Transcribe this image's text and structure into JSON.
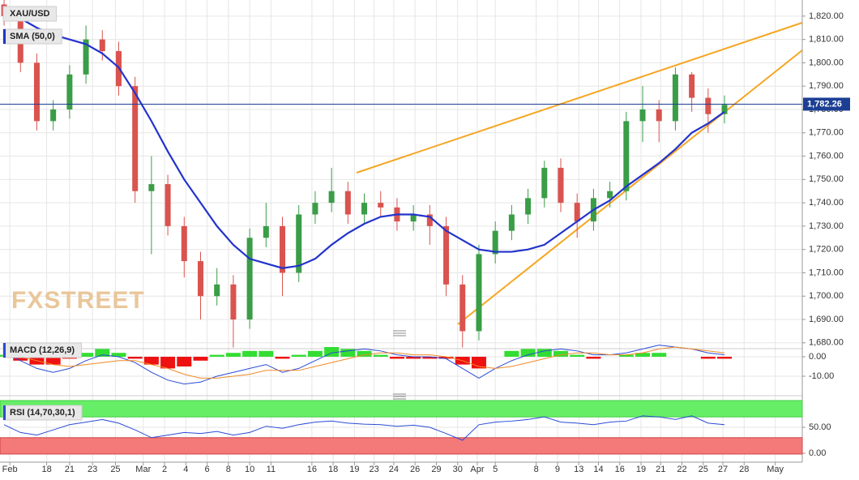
{
  "chart_data": [
    {
      "type": "candlestick",
      "title": "XAU/USD",
      "watermark": "FXSTREET",
      "xlim": [
        -0.25,
        48.75
      ],
      "ylim": [
        1677.5,
        1826.9
      ],
      "yticks": [
        {
          "value": 1680,
          "label": "1,680.00"
        },
        {
          "value": 1690,
          "label": "1,690.00"
        },
        {
          "value": 1700,
          "label": "1,700.00"
        },
        {
          "value": 1710,
          "label": "1,710.00"
        },
        {
          "value": 1720,
          "label": "1,720.00"
        },
        {
          "value": 1730,
          "label": "1,730.00"
        },
        {
          "value": 1740,
          "label": "1,740.00"
        },
        {
          "value": 1750,
          "label": "1,750.00"
        },
        {
          "value": 1760,
          "label": "1,760.00"
        },
        {
          "value": 1770,
          "label": "1,770.00"
        },
        {
          "value": 1780,
          "label": "1,780.00"
        },
        {
          "value": 1790,
          "label": "1,790.00"
        },
        {
          "value": 1800,
          "label": "1,800.00"
        },
        {
          "value": 1810,
          "label": "1,810.00"
        },
        {
          "value": 1820,
          "label": "1,820.00"
        }
      ],
      "up_color": "#3a9d47",
      "down_color": "#d9534f",
      "open": [
        1825,
        1820,
        1800,
        1775,
        1780,
        1795,
        1810,
        1805,
        1790,
        1745,
        1748,
        1730,
        1715,
        1700,
        1705,
        1690,
        1725,
        1730,
        1710,
        1735,
        1740,
        1745,
        1735,
        1740,
        1738,
        1732,
        1735,
        1730,
        1705,
        1685,
        1718,
        1728,
        1735,
        1742,
        1755,
        1740,
        1732,
        1742,
        1745,
        1775,
        1780,
        1775,
        1795,
        1785,
        1778
      ],
      "high": [
        1827,
        1824,
        1804,
        1784,
        1799,
        1816,
        1814,
        1809,
        1794,
        1760,
        1752,
        1734,
        1719,
        1712,
        1709,
        1729,
        1740,
        1734,
        1739,
        1745,
        1755,
        1749,
        1744,
        1745,
        1742,
        1739,
        1739,
        1734,
        1709,
        1722,
        1732,
        1739,
        1746,
        1758,
        1759,
        1744,
        1746,
        1749,
        1779,
        1790,
        1784,
        1798,
        1796,
        1789,
        1786
      ],
      "low": [
        1816,
        1796,
        1771,
        1771,
        1776,
        1791,
        1801,
        1786,
        1740,
        1718,
        1726,
        1708,
        1690,
        1696,
        1678,
        1686,
        1721,
        1700,
        1706,
        1731,
        1736,
        1731,
        1731,
        1734,
        1728,
        1728,
        1722,
        1700,
        1678,
        1681,
        1714,
        1724,
        1731,
        1738,
        1736,
        1725,
        1728,
        1738,
        1741,
        1766,
        1766,
        1771,
        1779,
        1770,
        1774
      ],
      "close": [
        1820,
        1800,
        1775,
        1780,
        1795,
        1810,
        1805,
        1790,
        1745,
        1748,
        1730,
        1715,
        1700,
        1705,
        1690,
        1725,
        1730,
        1710,
        1735,
        1740,
        1745,
        1735,
        1740,
        1738,
        1732,
        1735,
        1730,
        1705,
        1685,
        1718,
        1728,
        1735,
        1742,
        1755,
        1740,
        1732,
        1742,
        1745,
        1775,
        1780,
        1775,
        1795,
        1785,
        1778,
        1782
      ],
      "sma": {
        "name": "SMA (50,0)",
        "color": "#2233cc",
        "values": [
          1823,
          1819,
          1815,
          1812,
          1810,
          1808,
          1804,
          1798,
          1787,
          1775,
          1762,
          1750,
          1740,
          1730,
          1722,
          1716,
          1714,
          1712,
          1713,
          1716,
          1722,
          1727,
          1731,
          1734,
          1735,
          1735,
          1734,
          1728,
          1724,
          1720,
          1719,
          1719,
          1720,
          1722,
          1727,
          1732,
          1737,
          1741,
          1747,
          1752,
          1757,
          1763,
          1770,
          1774,
          1779
        ]
      },
      "current_price": {
        "value": 1782.26,
        "label": "1,782.26"
      },
      "current_color": "#1c3f94",
      "trend_color": "#f5a623"
    },
    {
      "type": "macd",
      "title": "MACD (12,26,9)",
      "xlim": [
        -0.25,
        48.75
      ],
      "ylim": [
        -18.75,
        4.17
      ],
      "yticks": [
        {
          "value": -10,
          "label": "-10.00"
        },
        {
          "value": 0,
          "label": "0.00"
        }
      ],
      "macd": {
        "color": "#2b4bd6",
        "values": [
          2,
          -2,
          -6,
          -8,
          -6,
          -2,
          1,
          0,
          -3,
          -8,
          -12,
          -14,
          -13,
          -10,
          -8,
          -6,
          -4,
          -8,
          -6,
          -2,
          2,
          3,
          4,
          3,
          1,
          0,
          0,
          -1,
          -6,
          -11,
          -6,
          -2,
          1,
          3,
          4,
          3,
          1,
          1,
          2,
          4,
          6,
          5,
          4,
          2,
          1
        ]
      },
      "signal": {
        "color": "#f08a24",
        "values": [
          1,
          0,
          -2,
          -4,
          -5,
          -4,
          -3,
          -2,
          -2,
          -4,
          -6,
          -9,
          -11,
          -11,
          -10,
          -9,
          -7,
          -7,
          -7,
          -5,
          -3,
          -1,
          1,
          2,
          2,
          1,
          1,
          0,
          -2,
          -5,
          -6,
          -5,
          -3,
          -1,
          1,
          2,
          2,
          1,
          1,
          2,
          4,
          5,
          4,
          3,
          2
        ]
      },
      "histogram": {
        "up_color": "#33dd33",
        "down_color": "#ee1111",
        "values": [
          1,
          -2,
          -4,
          -4,
          -1,
          2,
          4,
          2,
          -1,
          -4,
          -6,
          -5,
          -2,
          1,
          2,
          3,
          3,
          -1,
          1,
          3,
          5,
          4,
          3,
          1,
          -1,
          -1,
          -1,
          -1,
          -4,
          -6,
          0,
          3,
          4,
          4,
          3,
          1,
          -1,
          0,
          1,
          2,
          2,
          0,
          0,
          -1,
          -1
        ]
      }
    },
    {
      "type": "rsi",
      "title": "RSI (14,70,30,1)",
      "xlim": [
        -0.25,
        48.75
      ],
      "ylim": [
        -17.2,
        107.8
      ],
      "yticks": [
        {
          "value": 0,
          "label": "0.00"
        },
        {
          "value": 50,
          "label": "50.00"
        }
      ],
      "overbought": 70,
      "oversold": 30,
      "overbought_color": "#66ee66",
      "oversold_color": "#f47a7a",
      "color": "#2b4bd6",
      "values": [
        55,
        40,
        35,
        45,
        55,
        60,
        65,
        58,
        45,
        30,
        35,
        40,
        38,
        42,
        35,
        40,
        52,
        48,
        55,
        60,
        62,
        58,
        56,
        55,
        52,
        54,
        50,
        38,
        25,
        55,
        60,
        62,
        65,
        70,
        60,
        58,
        55,
        60,
        62,
        72,
        70,
        65,
        72,
        58,
        55
      ],
      "xticks": [
        {
          "value": 0.35,
          "label": "Feb"
        },
        {
          "value": 2.6,
          "label": "18"
        },
        {
          "value": 4.0,
          "label": "21"
        },
        {
          "value": 5.4,
          "label": "23"
        },
        {
          "value": 6.8,
          "label": "25"
        },
        {
          "value": 8.5,
          "label": "Mar"
        },
        {
          "value": 9.8,
          "label": "2"
        },
        {
          "value": 11.1,
          "label": "4"
        },
        {
          "value": 12.4,
          "label": "6"
        },
        {
          "value": 13.7,
          "label": "8"
        },
        {
          "value": 15.0,
          "label": "10"
        },
        {
          "value": 16.3,
          "label": "11"
        },
        {
          "value": 18.8,
          "label": "16"
        },
        {
          "value": 20.1,
          "label": "18"
        },
        {
          "value": 21.4,
          "label": "19"
        },
        {
          "value": 22.6,
          "label": "23"
        },
        {
          "value": 23.8,
          "label": "24"
        },
        {
          "value": 25.1,
          "label": "26"
        },
        {
          "value": 26.4,
          "label": "29"
        },
        {
          "value": 27.7,
          "label": "30"
        },
        {
          "value": 28.9,
          "label": "Apr"
        },
        {
          "value": 30.0,
          "label": "5"
        },
        {
          "value": 32.5,
          "label": "8"
        },
        {
          "value": 33.8,
          "label": "9"
        },
        {
          "value": 35.1,
          "label": "13"
        },
        {
          "value": 36.3,
          "label": "14"
        },
        {
          "value": 37.6,
          "label": "16"
        },
        {
          "value": 38.9,
          "label": "19"
        },
        {
          "value": 40.1,
          "label": "21"
        },
        {
          "value": 41.4,
          "label": "22"
        },
        {
          "value": 42.7,
          "label": "25"
        },
        {
          "value": 43.9,
          "label": "27"
        },
        {
          "value": 45.2,
          "label": "28"
        },
        {
          "value": 47.1,
          "label": "May"
        }
      ]
    }
  ]
}
